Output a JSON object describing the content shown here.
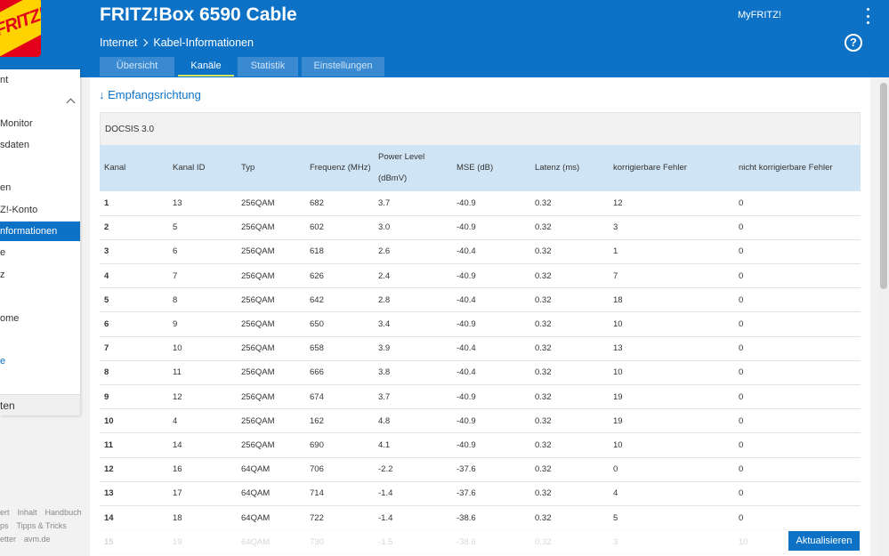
{
  "header": {
    "logo_text": "FRITZ!",
    "product_title": "FRITZ!Box 6590 Cable",
    "myfritz_label": "MyFRITZ!",
    "breadcrumb": {
      "parent": "Internet",
      "current": "Kabel-Informationen"
    },
    "help_label": "?"
  },
  "tabs": [
    {
      "label": "Übersicht",
      "active": false
    },
    {
      "label": "Kanäle",
      "active": true
    },
    {
      "label": "Statistik",
      "active": false
    },
    {
      "label": "Einstellungen",
      "active": false
    }
  ],
  "sidebar": {
    "items": [
      {
        "label": "nt"
      },
      {
        "label": "Monitor"
      },
      {
        "label": "sdaten"
      },
      {
        "label": "en"
      },
      {
        "label": "Z!-Konto"
      },
      {
        "label": "nformationen"
      },
      {
        "label": "e"
      },
      {
        "label": "z"
      },
      {
        "label": "ome"
      },
      {
        "label": "e"
      }
    ],
    "section": "ten",
    "footer": [
      [
        "ert",
        "Inhalt",
        "Handbuch"
      ],
      [
        "ps",
        "Tipps & Tricks"
      ],
      [
        "etter",
        "avm.de"
      ]
    ]
  },
  "main": {
    "section_title": "↓ Empfangsrichtung",
    "docsis_label": "DOCSIS 3.0",
    "columns": [
      "Kanal",
      "Kanal ID",
      "Typ",
      "Frequenz (MHz)",
      "Power Level (dBmV)",
      "MSE (dB)",
      "Latenz (ms)",
      "korrigierbare Fehler",
      "nicht korrigierbare Fehler"
    ],
    "rows": [
      [
        "1",
        "13",
        "256QAM",
        "682",
        "3.7",
        "-40.9",
        "0.32",
        "12",
        "0"
      ],
      [
        "2",
        "5",
        "256QAM",
        "602",
        "3.0",
        "-40.9",
        "0.32",
        "3",
        "0"
      ],
      [
        "3",
        "6",
        "256QAM",
        "618",
        "2.6",
        "-40.4",
        "0.32",
        "1",
        "0"
      ],
      [
        "4",
        "7",
        "256QAM",
        "626",
        "2.4",
        "-40.9",
        "0.32",
        "7",
        "0"
      ],
      [
        "5",
        "8",
        "256QAM",
        "642",
        "2.8",
        "-40.4",
        "0.32",
        "18",
        "0"
      ],
      [
        "6",
        "9",
        "256QAM",
        "650",
        "3.4",
        "-40.9",
        "0.32",
        "10",
        "0"
      ],
      [
        "7",
        "10",
        "256QAM",
        "658",
        "3.9",
        "-40.4",
        "0.32",
        "13",
        "0"
      ],
      [
        "8",
        "11",
        "256QAM",
        "666",
        "3.8",
        "-40.4",
        "0.32",
        "10",
        "0"
      ],
      [
        "9",
        "12",
        "256QAM",
        "674",
        "3.7",
        "-40.9",
        "0.32",
        "19",
        "0"
      ],
      [
        "10",
        "4",
        "256QAM",
        "162",
        "4.8",
        "-40.9",
        "0.32",
        "19",
        "0"
      ],
      [
        "11",
        "14",
        "256QAM",
        "690",
        "4.1",
        "-40.9",
        "0.32",
        "10",
        "0"
      ],
      [
        "12",
        "16",
        "64QAM",
        "706",
        "-2.2",
        "-37.6",
        "0.32",
        "0",
        "0"
      ],
      [
        "13",
        "17",
        "64QAM",
        "714",
        "-1.4",
        "-37.6",
        "0.32",
        "4",
        "0"
      ],
      [
        "14",
        "18",
        "64QAM",
        "722",
        "-1.4",
        "-38.6",
        "0.32",
        "5",
        "0"
      ],
      [
        "15",
        "19",
        "64QAM",
        "730",
        "-1.5",
        "-38.6",
        "0.32",
        "3",
        "10"
      ]
    ],
    "refresh_label": "Aktualisieren"
  }
}
